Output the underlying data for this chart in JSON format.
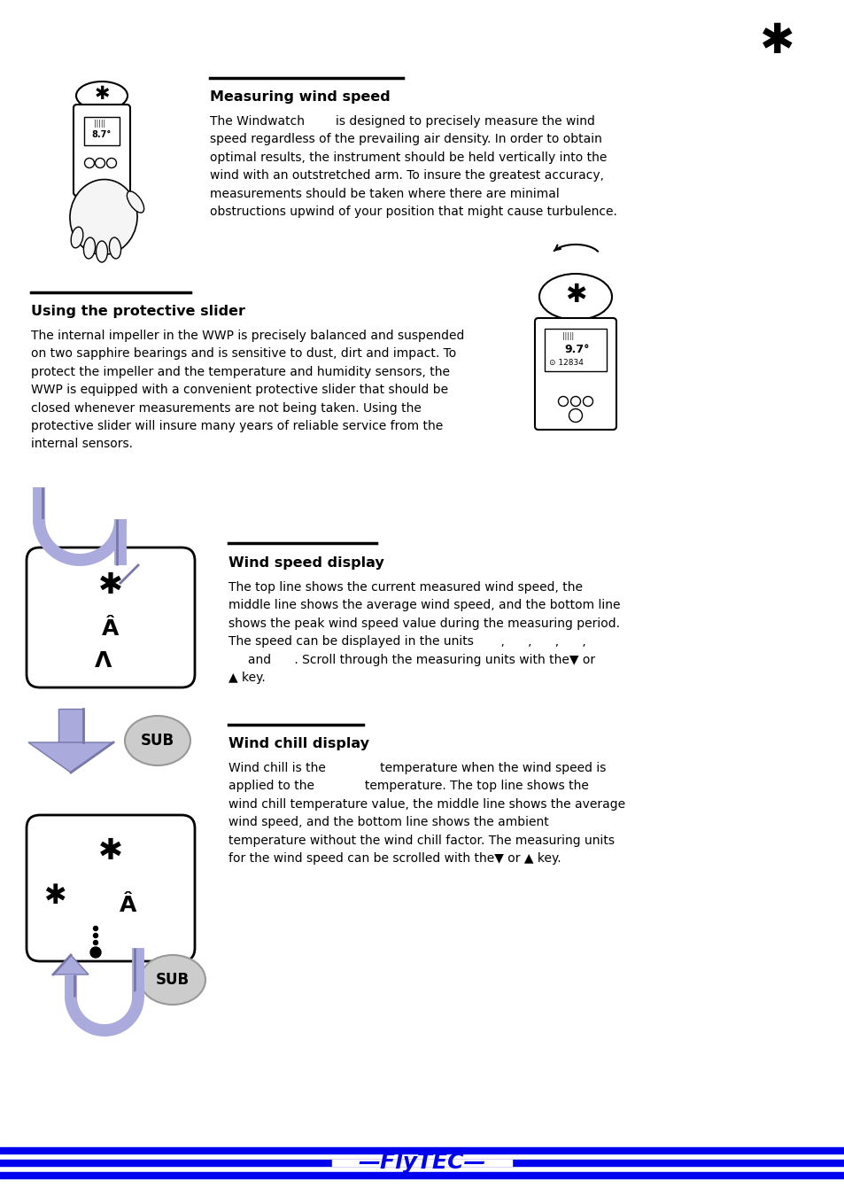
{
  "page_background": "#ffffff",
  "footer_bar_color": "#0000ee",
  "footer_text_color": "#0000ee",
  "section1_header": "Measuring wind speed",
  "section1_text": "The Windwatch        is designed to precisely measure the wind\nspeed regardless of the prevailing air density. In order to obtain\noptimal results, the instrument should be held vertically into the\nwind with an outstretched arm. To insure the greatest accuracy,\nmeasurements should be taken where there are minimal\nobstructions upwind of your position that might cause turbulence.",
  "section2_header": "Using the protective slider",
  "section2_text": "The internal impeller in the WWP is precisely balanced and suspended\non two sapphire bearings and is sensitive to dust, dirt and impact. To\nprotect the impeller and the temperature and humidity sensors, the\nWWP is equipped with a convenient protective slider that should be\nclosed whenever measurements are not being taken. Using the\nprotective slider will insure many years of reliable service from the\ninternal sensors.",
  "section3_header": "Wind speed display",
  "section3_text": "The top line shows the current measured wind speed, the\nmiddle line shows the average wind speed, and the bottom line\nshows the peak wind speed value during the measuring period.\nThe speed can be displayed in the units       ,      ,      ,      ,\n     and      . Scroll through the measuring units with the▼ or\n▲ key.",
  "section4_header": "Wind chill display",
  "section4_text": "Wind chill is the              temperature when the wind speed is\napplied to the             temperature. The top line shows the\nwind chill temperature value, the middle line shows the average\nwind speed, and the bottom line shows the ambient\ntemperature without the wind chill factor. The measuring units\nfor the wind speed can be scrolled with the▼ or ▲ key.",
  "arrow_fill": "#aaaadd",
  "arrow_edge": "#7777aa",
  "sub_face": "#cccccc",
  "sub_edge": "#999999"
}
